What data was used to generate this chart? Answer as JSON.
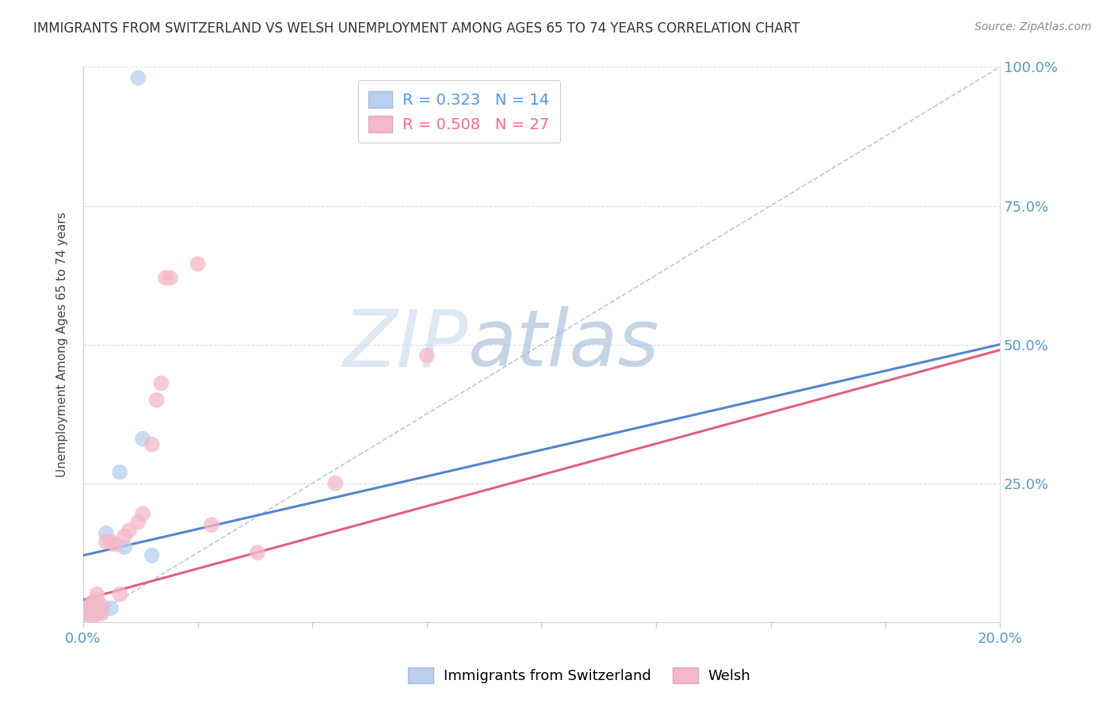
{
  "title": "IMMIGRANTS FROM SWITZERLAND VS WELSH UNEMPLOYMENT AMONG AGES 65 TO 74 YEARS CORRELATION CHART",
  "source": "Source: ZipAtlas.com",
  "ylabel": "Unemployment Among Ages 65 to 74 years",
  "ytick_labels": [
    "",
    "25.0%",
    "50.0%",
    "75.0%",
    "100.0%"
  ],
  "ytick_positions": [
    0,
    0.25,
    0.5,
    0.75,
    1.0
  ],
  "blue_R": 0.323,
  "blue_N": 14,
  "pink_R": 0.508,
  "pink_N": 27,
  "blue_color": "#b8d0ee",
  "pink_color": "#f5b8c8",
  "blue_line_color": "#5585cc",
  "pink_line_color": "#e06080",
  "legend_blue_text_color": "#4499ff",
  "legend_pink_text_color": "#ff6688",
  "title_color": "#333333",
  "source_color": "#888888",
  "blue_scatter_x": [
    0.001,
    0.001,
    0.002,
    0.002,
    0.003,
    0.003,
    0.004,
    0.005,
    0.006,
    0.008,
    0.009,
    0.013,
    0.015,
    0.012
  ],
  "blue_scatter_y": [
    0.015,
    0.025,
    0.02,
    0.03,
    0.015,
    0.03,
    0.02,
    0.16,
    0.025,
    0.27,
    0.135,
    0.33,
    0.12,
    0.98
  ],
  "pink_scatter_x": [
    0.001,
    0.001,
    0.002,
    0.002,
    0.002,
    0.003,
    0.003,
    0.004,
    0.004,
    0.005,
    0.006,
    0.007,
    0.008,
    0.009,
    0.01,
    0.012,
    0.013,
    0.015,
    0.016,
    0.017,
    0.018,
    0.019,
    0.025,
    0.028,
    0.038,
    0.055,
    0.075
  ],
  "pink_scatter_y": [
    0.02,
    0.015,
    0.035,
    0.025,
    0.01,
    0.04,
    0.05,
    0.03,
    0.015,
    0.145,
    0.145,
    0.14,
    0.05,
    0.155,
    0.165,
    0.18,
    0.195,
    0.32,
    0.4,
    0.43,
    0.62,
    0.62,
    0.645,
    0.175,
    0.125,
    0.25,
    0.48
  ],
  "blue_line_x": [
    0.0,
    0.2
  ],
  "blue_line_y": [
    0.12,
    0.5
  ],
  "pink_line_x": [
    0.0,
    0.2
  ],
  "pink_line_y": [
    0.04,
    0.49
  ],
  "ref_line_x": [
    0.0,
    0.2
  ],
  "ref_line_y": [
    0.0,
    1.0
  ],
  "xlim": [
    0.0,
    0.2
  ],
  "ylim": [
    0.0,
    1.0
  ],
  "watermark_zip": "ZIP",
  "watermark_atlas": "atlas",
  "background_color": "#ffffff"
}
